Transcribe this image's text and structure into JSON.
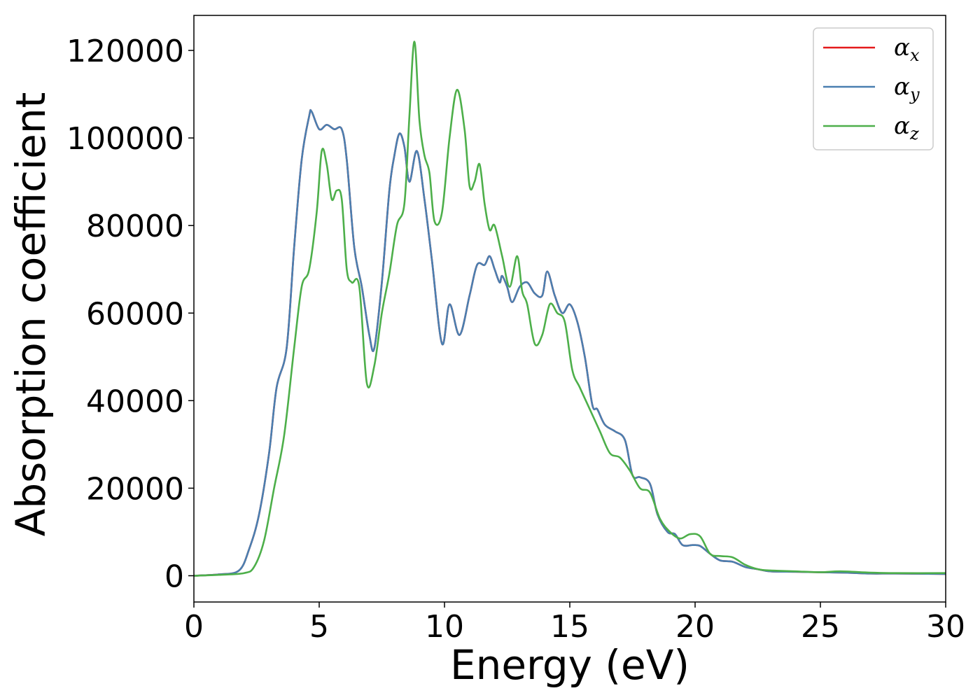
{
  "chart_data": {
    "type": "line",
    "xlabel": "Energy (eV)",
    "ylabel": "Absorption coefficient",
    "xlim": [
      0,
      30
    ],
    "ylim": [
      -6000,
      128000
    ],
    "xticks": [
      "0",
      "5",
      "10",
      "15",
      "20",
      "25",
      "30"
    ],
    "yticks": [
      "0",
      "20000",
      "40000",
      "60000",
      "80000",
      "100000",
      "120000"
    ],
    "grid": false,
    "legend_position": "top-right",
    "series": [
      {
        "name": "α",
        "subscript": "x",
        "color": "#e41a1c",
        "x": [
          0,
          1,
          1.8,
          2.2,
          2.6,
          3.0,
          3.3,
          3.7,
          4.0,
          4.3,
          4.6,
          4.7,
          5.0,
          5.3,
          5.6,
          5.9,
          6.1,
          6.4,
          6.7,
          7.0,
          7.2,
          7.5,
          7.8,
          8.0,
          8.2,
          8.4,
          8.6,
          8.9,
          9.2,
          9.5,
          9.9,
          10.2,
          10.6,
          11.0,
          11.3,
          11.6,
          11.8,
          12.0,
          12.2,
          12.3,
          12.5,
          12.7,
          13.0,
          13.3,
          13.6,
          13.9,
          14.1,
          14.4,
          14.7,
          15.0,
          15.3,
          15.6,
          15.9,
          16.1,
          16.4,
          16.8,
          17.2,
          17.5,
          17.8,
          18.2,
          18.5,
          18.9,
          19.2,
          19.5,
          19.9,
          20.2,
          20.6,
          21.0,
          21.5,
          22.0,
          22.5,
          23.0,
          24.0,
          25.0,
          26.0,
          27.0,
          28.0,
          30.0
        ],
        "values": [
          0,
          300,
          1200,
          6000,
          14000,
          28000,
          43000,
          52000,
          75000,
          95000,
          105000,
          106000,
          102000,
          103000,
          102000,
          102000,
          95000,
          75000,
          66000,
          55000,
          52000,
          67000,
          88000,
          96000,
          101000,
          98000,
          90000,
          97000,
          86000,
          72000,
          53000,
          62000,
          55000,
          64000,
          71000,
          71000,
          73000,
          70000,
          67000,
          68500,
          66000,
          62500,
          66000,
          67000,
          64500,
          64000,
          69500,
          64000,
          60000,
          62000,
          58000,
          50000,
          39000,
          38000,
          34500,
          33000,
          31000,
          23000,
          22500,
          21000,
          14000,
          10000,
          9500,
          7000,
          7000,
          6800,
          5000,
          3500,
          3200,
          2000,
          1500,
          1000,
          900,
          800,
          700,
          500,
          500,
          400
        ]
      },
      {
        "name": "α",
        "subscript": "y",
        "color": "#4a7fb0",
        "x": [
          0,
          1,
          1.8,
          2.2,
          2.6,
          3.0,
          3.3,
          3.7,
          4.0,
          4.3,
          4.6,
          4.7,
          5.0,
          5.3,
          5.6,
          5.9,
          6.1,
          6.4,
          6.7,
          7.0,
          7.2,
          7.5,
          7.8,
          8.0,
          8.2,
          8.4,
          8.6,
          8.9,
          9.2,
          9.5,
          9.9,
          10.2,
          10.6,
          11.0,
          11.3,
          11.6,
          11.8,
          12.0,
          12.2,
          12.3,
          12.5,
          12.7,
          13.0,
          13.3,
          13.6,
          13.9,
          14.1,
          14.4,
          14.7,
          15.0,
          15.3,
          15.6,
          15.9,
          16.1,
          16.4,
          16.8,
          17.2,
          17.5,
          17.8,
          18.2,
          18.5,
          18.9,
          19.2,
          19.5,
          19.9,
          20.2,
          20.6,
          21.0,
          21.5,
          22.0,
          22.5,
          23.0,
          24.0,
          25.0,
          26.0,
          27.0,
          28.0,
          30.0
        ],
        "values": [
          0,
          300,
          1200,
          6000,
          14000,
          28000,
          43000,
          52000,
          75000,
          95000,
          105000,
          106000,
          102000,
          103000,
          102000,
          102000,
          95000,
          75000,
          66000,
          55000,
          52000,
          67000,
          88000,
          96000,
          101000,
          98000,
          90000,
          97000,
          86000,
          72000,
          53000,
          62000,
          55000,
          64000,
          71000,
          71000,
          73000,
          70000,
          67000,
          68500,
          66000,
          62500,
          66000,
          67000,
          64500,
          64000,
          69500,
          64000,
          60000,
          62000,
          58000,
          50000,
          39000,
          38000,
          34500,
          33000,
          31000,
          23000,
          22500,
          21000,
          14000,
          10000,
          9500,
          7000,
          7000,
          6800,
          5000,
          3500,
          3200,
          2000,
          1500,
          1000,
          900,
          800,
          700,
          500,
          500,
          400
        ]
      },
      {
        "name": "α",
        "subscript": "z",
        "color": "#4daf4a",
        "x": [
          0,
          1,
          2.0,
          2.4,
          2.8,
          3.2,
          3.6,
          4.0,
          4.3,
          4.6,
          4.9,
          5.1,
          5.3,
          5.5,
          5.7,
          5.9,
          6.1,
          6.3,
          6.6,
          6.9,
          7.2,
          7.5,
          7.8,
          8.1,
          8.4,
          8.6,
          8.8,
          9.0,
          9.2,
          9.4,
          9.6,
          9.9,
          10.2,
          10.5,
          10.8,
          11.0,
          11.2,
          11.4,
          11.6,
          11.8,
          12.0,
          12.3,
          12.6,
          12.9,
          13.1,
          13.3,
          13.6,
          13.9,
          14.2,
          14.5,
          14.8,
          15.1,
          15.4,
          15.8,
          16.2,
          16.6,
          17.0,
          17.4,
          17.8,
          18.2,
          18.6,
          19.0,
          19.4,
          19.8,
          20.2,
          20.6,
          21.0,
          21.5,
          22.0,
          22.5,
          23.0,
          24.0,
          25.0,
          25.8,
          27.0,
          28.0,
          30.0
        ],
        "values": [
          0,
          200,
          600,
          2000,
          8000,
          20000,
          32000,
          52000,
          66000,
          70000,
          83000,
          97000,
          94000,
          86000,
          88000,
          86000,
          70000,
          67000,
          66000,
          44000,
          48000,
          60000,
          69000,
          80000,
          85000,
          105000,
          122000,
          104000,
          96000,
          92000,
          81000,
          83000,
          100000,
          111000,
          102000,
          89000,
          90000,
          94000,
          85000,
          79000,
          80000,
          73000,
          66000,
          73000,
          65000,
          62000,
          53000,
          55000,
          62000,
          60000,
          58000,
          47000,
          43000,
          38000,
          33000,
          28000,
          27000,
          24000,
          20000,
          19000,
          13000,
          10000,
          8500,
          9500,
          9000,
          5000,
          4500,
          4200,
          2500,
          1500,
          1200,
          1000,
          800,
          1000,
          700,
          600,
          600
        ]
      }
    ]
  }
}
